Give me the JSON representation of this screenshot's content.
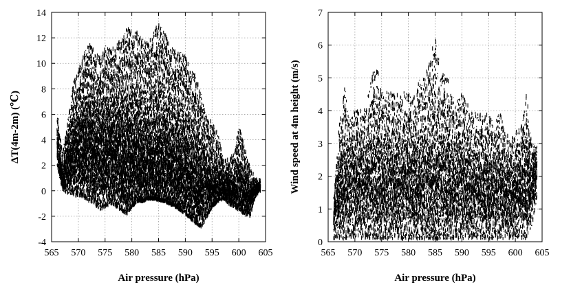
{
  "chart_data": [
    {
      "type": "scatter",
      "title": "",
      "xlabel": "Air pressure (hPa)",
      "ylabel": "ΔT(4m-2m) (℃)",
      "xlim": [
        565,
        605
      ],
      "ylim": [
        -4,
        14
      ],
      "xticks": [
        "565",
        "570",
        "575",
        "580",
        "585",
        "590",
        "595",
        "600",
        "605"
      ],
      "yticks": [
        "-4",
        "-2",
        "0",
        "2",
        "4",
        "6",
        "8",
        "10",
        "12",
        "14"
      ],
      "grid": true,
      "legend": "none",
      "series": [
        {
          "color": "#000000",
          "envelope": {
            "x": [
              566,
              567,
              568,
              569,
              570,
              571,
              572,
              573,
              574,
              575,
              576,
              577,
              578,
              579,
              580,
              581,
              582,
              583,
              584,
              585,
              586,
              587,
              588,
              589,
              590,
              591,
              592,
              593,
              594,
              595,
              596,
              597,
              598,
              599,
              600,
              601,
              602,
              603,
              604
            ],
            "min": [
              2.0,
              0.0,
              -0.2,
              -0.3,
              -0.4,
              -0.5,
              -0.8,
              -1.0,
              -1.5,
              -1.2,
              -1.0,
              -1.2,
              -1.5,
              -1.8,
              -1.2,
              -0.8,
              -0.8,
              -0.6,
              -0.6,
              -0.7,
              -0.8,
              -1.0,
              -1.2,
              -1.5,
              -1.8,
              -2.2,
              -2.6,
              -2.8,
              -2.0,
              -1.2,
              -0.8,
              -0.6,
              -1.0,
              -1.2,
              -1.5,
              -1.8,
              -2.0,
              -0.5,
              0.0
            ],
            "max": [
              6.0,
              3.0,
              5.5,
              8.5,
              9.5,
              11.0,
              11.5,
              11.0,
              10.5,
              11.5,
              11.0,
              11.5,
              12.0,
              12.8,
              12.5,
              12.5,
              12.0,
              11.5,
              12.5,
              13.3,
              12.5,
              11.5,
              11.0,
              11.0,
              10.5,
              9.5,
              9.0,
              7.5,
              5.5,
              5.5,
              4.5,
              2.5,
              2.5,
              3.0,
              5.0,
              3.5,
              2.0,
              1.0,
              0.8
            ]
          },
          "median": [
            3.0,
            1.0,
            2.0,
            3.0,
            3.0,
            3.5,
            3.5,
            3.0,
            3.0,
            3.0,
            3.0,
            3.0,
            2.5,
            2.5,
            2.5,
            2.5,
            2.0,
            2.0,
            2.0,
            2.0,
            2.0,
            2.0,
            1.5,
            1.5,
            1.5,
            1.0,
            0.5,
            0.5,
            0.3,
            0.3,
            0.2,
            0.2,
            0.0,
            0.0,
            0.0,
            -0.2,
            -0.5,
            0.0,
            0.3
          ]
        }
      ]
    },
    {
      "type": "scatter",
      "title": "",
      "xlabel": "Air pressure (hPa)",
      "ylabel": "Wind speed at 4m height (m/s)",
      "xlim": [
        565,
        605
      ],
      "ylim": [
        0,
        7
      ],
      "xticks": [
        "565",
        "570",
        "575",
        "580",
        "585",
        "590",
        "595",
        "600",
        "605"
      ],
      "yticks": [
        "0",
        "1",
        "2",
        "3",
        "4",
        "5",
        "6",
        "7"
      ],
      "grid": true,
      "legend": "none",
      "series": [
        {
          "color": "#000000",
          "envelope": {
            "x": [
              566,
              567,
              568,
              569,
              570,
              571,
              572,
              573,
              574,
              575,
              576,
              577,
              578,
              579,
              580,
              581,
              582,
              583,
              584,
              585,
              586,
              587,
              588,
              589,
              590,
              591,
              592,
              593,
              594,
              595,
              596,
              597,
              598,
              599,
              600,
              601,
              602,
              603,
              604
            ],
            "min": [
              0.1,
              0.1,
              0.1,
              0.1,
              0.1,
              0.1,
              0.1,
              0.1,
              0.1,
              0.1,
              0.1,
              0.1,
              0.1,
              0.1,
              0.1,
              0.1,
              0.1,
              0.1,
              0.1,
              0.1,
              0.1,
              0.1,
              0.1,
              0.1,
              0.1,
              0.1,
              0.1,
              0.1,
              0.1,
              0.1,
              0.1,
              0.1,
              0.1,
              0.1,
              0.1,
              0.1,
              0.1,
              0.5,
              1.3
            ],
            "max": [
              1.4,
              3.6,
              4.8,
              3.7,
              4.0,
              4.0,
              4.2,
              5.0,
              5.5,
              4.6,
              4.6,
              4.5,
              4.5,
              4.6,
              4.5,
              4.5,
              5.0,
              5.0,
              5.5,
              6.4,
              5.0,
              5.3,
              4.5,
              4.3,
              4.5,
              4.2,
              4.0,
              3.9,
              3.9,
              4.0,
              3.5,
              4.0,
              3.3,
              3.2,
              3.4,
              3.5,
              4.6,
              3.0,
              3.0
            ]
          },
          "median": [
            0.8,
            1.7,
            1.8,
            1.8,
            1.8,
            1.8,
            1.8,
            1.8,
            1.9,
            1.8,
            1.8,
            1.8,
            1.8,
            1.8,
            1.8,
            1.8,
            1.8,
            1.8,
            1.9,
            1.9,
            1.9,
            1.8,
            1.8,
            1.8,
            1.8,
            1.7,
            1.7,
            1.7,
            1.6,
            1.6,
            1.6,
            1.6,
            1.5,
            1.5,
            1.5,
            1.6,
            1.8,
            1.8,
            2.2
          ]
        }
      ]
    }
  ]
}
